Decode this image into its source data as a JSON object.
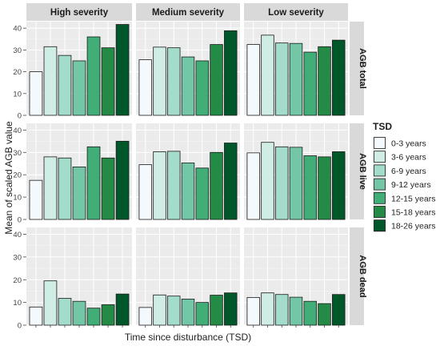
{
  "chart_data": {
    "type": "bar",
    "ylabel": "Mean of scaled AGB value",
    "xlabel": "Time since disturbance (TSD)",
    "ylim": [
      0,
      43
    ],
    "yticks": [
      0,
      10,
      20,
      30,
      40
    ],
    "grid": true,
    "legend_placement": "right",
    "column_facets": [
      "High severity",
      "Medium severity",
      "Low severity"
    ],
    "row_facets": [
      "AGB total",
      "AGB live",
      "AGB dead"
    ],
    "legend": {
      "title": "TSD",
      "entries": [
        {
          "label": "0-3 years",
          "color": "#f3f9fc"
        },
        {
          "label": "3-6 years",
          "color": "#d0ede5"
        },
        {
          "label": "6-9 years",
          "color": "#a3dccb"
        },
        {
          "label": "9-12 years",
          "color": "#74c7a6"
        },
        {
          "label": "12-15 years",
          "color": "#41ae77"
        },
        {
          "label": "15-18 years",
          "color": "#238b45"
        },
        {
          "label": "18-26 years",
          "color": "#00582a"
        }
      ]
    },
    "panels": [
      {
        "row": "AGB total",
        "col": "High severity",
        "values": [
          20,
          31.5,
          27.5,
          25,
          36,
          31,
          41.7
        ]
      },
      {
        "row": "AGB total",
        "col": "Medium severity",
        "values": [
          25.5,
          31.3,
          31,
          26.8,
          25,
          32.5,
          38.8
        ]
      },
      {
        "row": "AGB total",
        "col": "Low severity",
        "values": [
          32.5,
          36.8,
          33.2,
          33,
          29,
          31.5,
          34.5
        ]
      },
      {
        "row": "AGB live",
        "col": "High severity",
        "values": [
          17.5,
          28,
          27.5,
          23.5,
          32.5,
          27.5,
          35
        ]
      },
      {
        "row": "AGB live",
        "col": "Medium severity",
        "values": [
          24.5,
          30.3,
          30.5,
          25.3,
          23,
          30,
          34.2
        ]
      },
      {
        "row": "AGB live",
        "col": "Low severity",
        "values": [
          29.8,
          34.5,
          32.5,
          32.3,
          28.5,
          28,
          30.3
        ]
      },
      {
        "row": "AGB dead",
        "col": "High severity",
        "values": [
          8,
          19.5,
          11.8,
          10.5,
          7.5,
          9,
          13.7
        ]
      },
      {
        "row": "AGB dead",
        "col": "Medium severity",
        "values": [
          7.8,
          13.3,
          12.8,
          11.5,
          10,
          13.2,
          14.2
        ]
      },
      {
        "row": "AGB dead",
        "col": "Low severity",
        "values": [
          12.2,
          14.2,
          13.5,
          12.3,
          10.5,
          9.5,
          13.5
        ]
      }
    ]
  }
}
